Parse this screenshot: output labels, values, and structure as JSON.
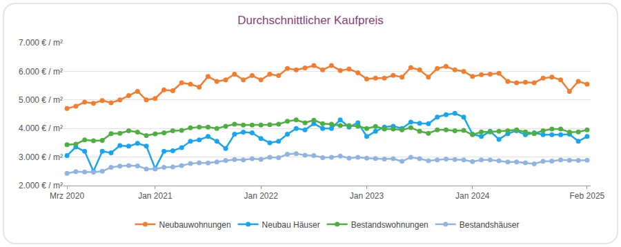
{
  "chart_data": {
    "type": "line",
    "title": "Durchschnittlicher Kaufpreis",
    "categories": [
      "Mrz 2020",
      null,
      null,
      null,
      null,
      null,
      null,
      null,
      null,
      null,
      "Jan 2021",
      null,
      null,
      null,
      null,
      null,
      null,
      null,
      null,
      null,
      null,
      null,
      "Jan 2022",
      null,
      null,
      null,
      null,
      null,
      null,
      null,
      null,
      null,
      null,
      null,
      "Jan 2023",
      null,
      null,
      null,
      null,
      null,
      null,
      null,
      null,
      null,
      null,
      null,
      "Jan 2024",
      null,
      null,
      null,
      null,
      null,
      null,
      null,
      null,
      null,
      null,
      null,
      null,
      "Feb 2025"
    ],
    "series": [
      {
        "name": "Neubauwohnungen",
        "color": "#f47c2c",
        "values": [
          4700,
          4780,
          4920,
          4880,
          4980,
          4900,
          5000,
          5150,
          5300,
          5000,
          5050,
          5350,
          5320,
          5600,
          5550,
          5450,
          5820,
          5650,
          5700,
          5900,
          5700,
          5850,
          5700,
          5900,
          5850,
          6100,
          6050,
          6120,
          6200,
          6050,
          6200,
          6030,
          6080,
          5950,
          5730,
          5760,
          5760,
          5860,
          5800,
          6130,
          6050,
          5800,
          6100,
          6170,
          6050,
          6000,
          5820,
          5880,
          5900,
          5930,
          5650,
          5600,
          5620,
          5600,
          5760,
          5800,
          5700,
          5300,
          5650,
          5550
        ]
      },
      {
        "name": "Neubau Häuser",
        "color": "#15a5f2",
        "values": [
          3050,
          3350,
          3200,
          2500,
          3200,
          3150,
          3400,
          3380,
          3480,
          3380,
          2600,
          3200,
          3220,
          3330,
          3550,
          3600,
          3720,
          3550,
          3300,
          3800,
          3870,
          3850,
          3650,
          3500,
          3550,
          3800,
          4000,
          3950,
          4170,
          4000,
          4000,
          4300,
          4050,
          4200,
          3720,
          3900,
          4050,
          4080,
          4000,
          4220,
          4180,
          4170,
          4400,
          4480,
          4530,
          4400,
          3800,
          3720,
          3900,
          3620,
          3820,
          3920,
          3780,
          3850,
          3780,
          3780,
          3780,
          3800,
          3550,
          3720
        ]
      },
      {
        "name": "Bestandswohnungen",
        "color": "#4caf3e",
        "values": [
          3430,
          3450,
          3600,
          3570,
          3580,
          3820,
          3830,
          3920,
          3870,
          3750,
          3810,
          3850,
          3920,
          3930,
          4020,
          4050,
          4050,
          4000,
          4080,
          4150,
          4120,
          4120,
          4120,
          4130,
          4150,
          4250,
          4300,
          4200,
          4290,
          4170,
          4150,
          4100,
          4100,
          4080,
          4000,
          4070,
          3980,
          3980,
          3950,
          4030,
          3900,
          3830,
          3950,
          3950,
          3920,
          3930,
          3780,
          3880,
          3880,
          3900,
          3920,
          3950,
          3880,
          3820,
          3920,
          3980,
          3980,
          3870,
          3880,
          3950
        ]
      },
      {
        "name": "Bestandshäuser",
        "color": "#8fb4e3",
        "values": [
          2430,
          2490,
          2480,
          2470,
          2500,
          2640,
          2680,
          2700,
          2690,
          2580,
          2580,
          2640,
          2650,
          2700,
          2770,
          2800,
          2790,
          2830,
          2880,
          2910,
          2900,
          2940,
          2920,
          2990,
          2980,
          3100,
          3120,
          3060,
          3050,
          2980,
          2990,
          3030,
          2960,
          2990,
          2960,
          2950,
          2930,
          2940,
          2850,
          2990,
          2940,
          2870,
          2900,
          2930,
          2910,
          2900,
          2840,
          2900,
          2900,
          2870,
          2830,
          2830,
          2800,
          2760,
          2850,
          2860,
          2900,
          2890,
          2880,
          2890
        ]
      }
    ],
    "ylim": [
      2000,
      7000
    ],
    "yticks": [
      {
        "value": 2000,
        "label": "2.000 € / m²"
      },
      {
        "value": 3000,
        "label": "3.000 € / m²"
      },
      {
        "value": 4000,
        "label": "4.000 € / m²"
      },
      {
        "value": 5000,
        "label": "5.000 € / m²"
      },
      {
        "value": 6000,
        "label": "6.000 € / m²"
      },
      {
        "value": 7000,
        "label": "7.000 € / m²"
      }
    ],
    "grid": true,
    "legend": "bottom",
    "marker": "circle",
    "line_style": "solid"
  }
}
